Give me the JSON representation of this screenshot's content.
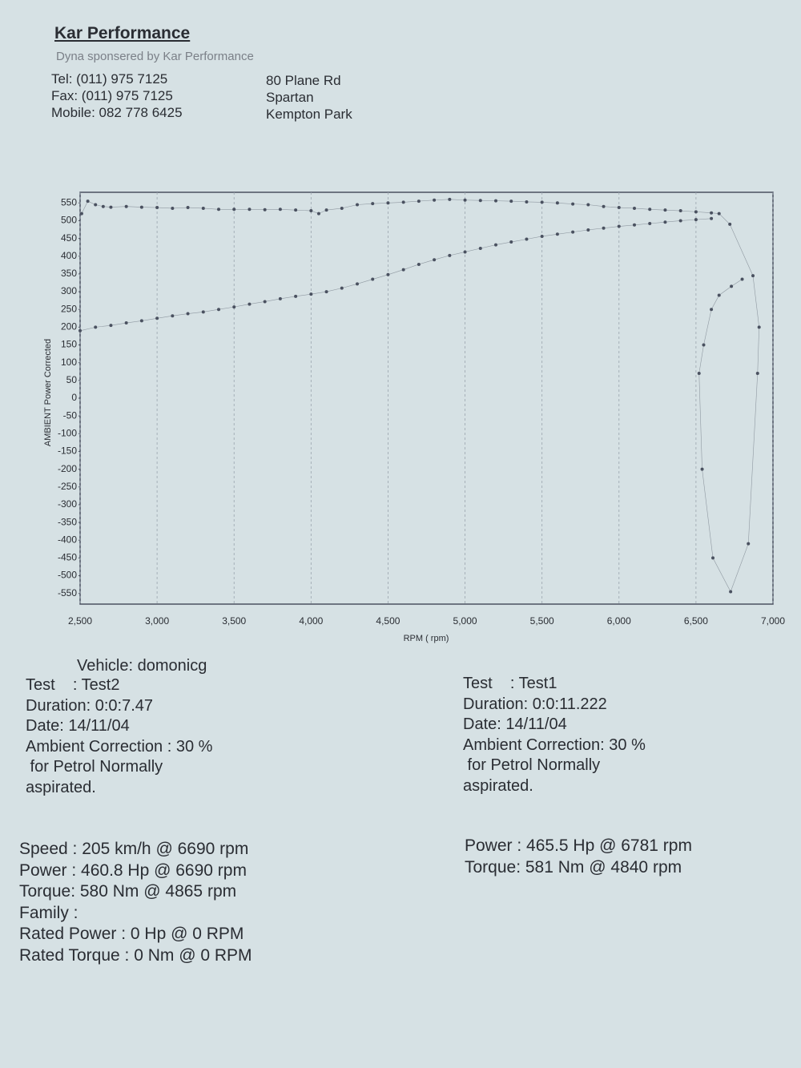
{
  "header": {
    "title": "Kar Performance",
    "subtitle": "Dyna sponsered by Kar Performance",
    "contact": [
      "Tel: (011) 975 7125",
      "Fax: (011) 975 7125",
      "Mobile: 082 778 6425"
    ],
    "address": [
      "80 Plane Rd",
      "Spartan",
      "Kempton Park"
    ]
  },
  "chart_data": {
    "type": "scatter",
    "ylabel": "AMBIENT Power Corrected",
    "xlabel": "RPM ( rpm)",
    "xlim": [
      2500,
      7000
    ],
    "ylim": [
      -580,
      580
    ],
    "xticks": [
      {
        "value": 2500,
        "label": "2,500"
      },
      {
        "value": 3000,
        "label": "3,000"
      },
      {
        "value": 3500,
        "label": "3,500"
      },
      {
        "value": 4000,
        "label": "4,000"
      },
      {
        "value": 4500,
        "label": "4,500"
      },
      {
        "value": 5000,
        "label": "5,000"
      },
      {
        "value": 5500,
        "label": "5,500"
      },
      {
        "value": 6000,
        "label": "6,000"
      },
      {
        "value": 6500,
        "label": "6,500"
      },
      {
        "value": 7000,
        "label": "7,000"
      }
    ],
    "yticks": [
      550,
      500,
      450,
      400,
      350,
      300,
      250,
      200,
      150,
      100,
      50,
      0,
      -50,
      -100,
      -150,
      -200,
      -250,
      -300,
      -350,
      -400,
      -450,
      -500,
      -550
    ],
    "xgrid": true,
    "series": [
      {
        "color": "#4a5160",
        "x": [
          2510,
          2550,
          2600,
          2650,
          2700,
          2800,
          2900,
          3000,
          3100,
          3200,
          3300,
          3400,
          3500,
          3600,
          3700,
          3800,
          3900,
          4000,
          4050,
          4100,
          4200,
          4300,
          4400,
          4500,
          4600,
          4700,
          4800,
          4900,
          5000,
          5100,
          5200,
          5300,
          5400,
          5500,
          5600,
          5700,
          5800,
          5900,
          6000,
          6100,
          6200,
          6300,
          6400,
          6500,
          6600,
          6650,
          6720,
          6870,
          6910,
          6900,
          6840,
          6725,
          6610,
          6540,
          6520,
          6550,
          6600,
          6650,
          6730,
          6800
        ],
        "values": [
          520,
          555,
          545,
          540,
          538,
          540,
          538,
          537,
          535,
          537,
          535,
          532,
          532,
          532,
          531,
          532,
          530,
          528,
          520,
          530,
          535,
          545,
          548,
          550,
          552,
          555,
          558,
          560,
          558,
          557,
          556,
          555,
          553,
          552,
          550,
          547,
          545,
          540,
          537,
          535,
          532,
          530,
          528,
          525,
          522,
          520,
          490,
          345,
          200,
          70,
          -410,
          -545,
          -450,
          -200,
          70,
          150,
          250,
          290,
          315,
          335
        ]
      },
      {
        "color": "#4a5160",
        "x": [
          2500,
          2600,
          2700,
          2800,
          2900,
          3000,
          3100,
          3200,
          3300,
          3400,
          3500,
          3600,
          3700,
          3800,
          3900,
          4000,
          4100,
          4200,
          4300,
          4400,
          4500,
          4600,
          4700,
          4800,
          4900,
          5000,
          5100,
          5200,
          5300,
          5400,
          5500,
          5600,
          5700,
          5800,
          5900,
          6000,
          6100,
          6200,
          6300,
          6400,
          6500,
          6600
        ],
        "values": [
          190,
          200,
          205,
          212,
          218,
          225,
          232,
          238,
          243,
          250,
          257,
          265,
          272,
          280,
          287,
          293,
          300,
          310,
          322,
          335,
          348,
          362,
          377,
          390,
          402,
          412,
          422,
          432,
          440,
          448,
          456,
          462,
          468,
          474,
          479,
          484,
          488,
          492,
          496,
          500,
          503,
          506
        ]
      }
    ]
  },
  "left_info": {
    "vehicle": "Vehicle: domonicg",
    "lines": [
      "Test    : Test2",
      "Duration: 0:0:7.47",
      "Date: 14/11/04",
      "Ambient Correction : 30 %",
      " for Petrol Normally",
      "aspirated."
    ]
  },
  "right_info": {
    "lines": [
      "Test    : Test1",
      "Duration: 0:0:11.222",
      "Date: 14/11/04",
      "Ambient Correction: 30 %",
      " for Petrol Normally",
      "aspirated."
    ]
  },
  "left_results": [
    "Speed : 205 km/h @ 6690 rpm",
    "Power : 460.8 Hp @ 6690 rpm",
    "Torque: 580 Nm @ 4865 rpm",
    "Family :",
    "Rated Power : 0 Hp @ 0 RPM",
    "Rated Torque : 0 Nm @ 0 RPM"
  ],
  "right_results": [
    "Power : 465.5 Hp @ 6781 rpm",
    "Torque: 581 Nm @ 4840 rpm"
  ]
}
